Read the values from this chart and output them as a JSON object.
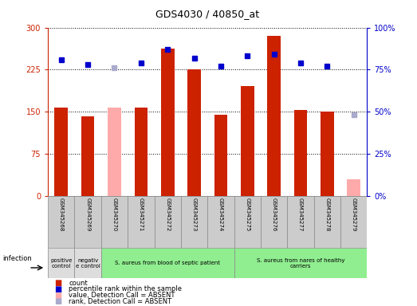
{
  "title": "GDS4030 / 40850_at",
  "samples": [
    "GSM345268",
    "GSM345269",
    "GSM345270",
    "GSM345271",
    "GSM345272",
    "GSM345273",
    "GSM345274",
    "GSM345275",
    "GSM345276",
    "GSM345277",
    "GSM345278",
    "GSM345279"
  ],
  "count_values": [
    157,
    142,
    null,
    158,
    262,
    225,
    145,
    195,
    285,
    153,
    150,
    null
  ],
  "count_absent": [
    null,
    null,
    157,
    null,
    null,
    null,
    null,
    null,
    null,
    null,
    null,
    30
  ],
  "rank_values": [
    81,
    78,
    null,
    79,
    87,
    82,
    77,
    83,
    84,
    79,
    77,
    null
  ],
  "rank_absent": [
    null,
    null,
    76,
    null,
    null,
    null,
    null,
    null,
    null,
    null,
    null,
    48
  ],
  "ylim_left": [
    0,
    300
  ],
  "ylim_right": [
    0,
    100
  ],
  "yticks_left": [
    0,
    75,
    150,
    225,
    300
  ],
  "yticks_right": [
    0,
    25,
    50,
    75,
    100
  ],
  "color_count": "#cc2200",
  "color_rank": "#0000cc",
  "color_count_absent": "#ffaaaa",
  "color_rank_absent": "#aaaacc",
  "group_labels": [
    {
      "text": "positive\ncontrol",
      "start": 0,
      "end": 1,
      "color": "#dddddd"
    },
    {
      "text": "negativ\ne control",
      "start": 1,
      "end": 2,
      "color": "#dddddd"
    },
    {
      "text": "S. aureus from blood of septic patient",
      "start": 2,
      "end": 7,
      "color": "#90ee90"
    },
    {
      "text": "S. aureus from nares of healthy\ncarriers",
      "start": 7,
      "end": 12,
      "color": "#90ee90"
    }
  ],
  "infection_label": "infection",
  "bar_width": 0.5,
  "marker_size": 5,
  "background_color": "#ffffff",
  "tick_box_color": "#cccccc",
  "grid_color": "#000000"
}
